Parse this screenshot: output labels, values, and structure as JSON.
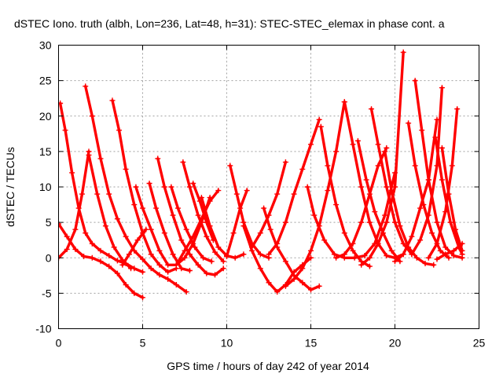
{
  "chart_data": {
    "type": "scatter",
    "title": "dSTEC Iono. truth (albh, Lon=236, Lat=48, h=31): STEC-STEC_elemax in phase cont. a",
    "xlabel": "GPS time / hours of day 242 of year 2014",
    "ylabel": "dSTEC  / TECUs",
    "xlim": [
      0,
      25
    ],
    "ylim": [
      -10,
      30
    ],
    "xticks": [
      0,
      5,
      10,
      15,
      20,
      25
    ],
    "yticks": [
      -10,
      -5,
      0,
      5,
      10,
      15,
      20,
      25,
      30
    ],
    "grid": true,
    "legend": "none",
    "marker": "+",
    "color": "#ff0000",
    "series": [
      {
        "x": [
          0.0,
          0.5,
          1.0,
          1.5,
          2.0,
          2.5,
          3.0,
          3.5,
          4.0,
          4.5,
          5.0
        ],
        "values": [
          4.8,
          3.0,
          1.2,
          0.2,
          0.0,
          -0.5,
          -1.2,
          -2.2,
          -3.8,
          -5.0,
          -5.6
        ]
      },
      {
        "x": [
          0.1,
          0.4,
          0.8,
          1.2,
          1.6,
          2.0,
          2.5,
          3.0,
          3.5,
          4.0,
          4.5,
          5.0
        ],
        "values": [
          21.8,
          18.0,
          12.0,
          7.0,
          3.5,
          2.0,
          1.0,
          0.3,
          -0.4,
          -0.8,
          -1.5,
          -2.0
        ]
      },
      {
        "x": [
          0.0,
          0.5,
          1.0,
          1.4,
          1.8
        ],
        "values": [
          0.0,
          1.2,
          4.0,
          9.0,
          15.0
        ]
      },
      {
        "x": [
          1.6,
          2.0,
          2.5,
          3.0,
          3.5,
          4.0,
          4.5,
          5.0,
          5.5,
          6.0,
          6.5,
          7.0,
          7.6
        ],
        "values": [
          24.2,
          20.0,
          14.0,
          9.0,
          5.5,
          3.0,
          1.0,
          -0.2,
          -1.5,
          -2.4,
          -3.0,
          -3.8,
          -4.8
        ]
      },
      {
        "x": [
          1.8,
          2.3,
          2.8,
          3.3,
          3.8,
          4.3
        ],
        "values": [
          14.5,
          9.0,
          4.5,
          1.5,
          -0.3,
          -1.5
        ]
      },
      {
        "x": [
          3.2,
          3.6,
          4.0,
          4.5,
          5.0,
          5.5,
          6.0,
          6.5,
          7.0
        ],
        "values": [
          22.2,
          18.0,
          12.5,
          7.5,
          3.5,
          0.5,
          -1.0,
          -2.0,
          -1.5
        ]
      },
      {
        "x": [
          3.8,
          4.2,
          4.7,
          5.2
        ],
        "values": [
          -1.0,
          0.5,
          2.5,
          4.0
        ]
      },
      {
        "x": [
          4.6,
          5.0,
          5.5,
          6.0,
          6.5,
          7.0,
          7.5,
          8.0,
          8.5,
          9.0
        ],
        "values": [
          10.0,
          7.0,
          4.0,
          1.0,
          -1.0,
          -1.0,
          0.0,
          2.0,
          5.0,
          8.5
        ]
      },
      {
        "x": [
          5.4,
          5.8,
          6.3,
          6.8,
          7.3,
          7.8
        ],
        "values": [
          10.5,
          7.0,
          3.5,
          0.5,
          -1.5,
          -1.8
        ]
      },
      {
        "x": [
          5.9,
          6.3,
          6.8,
          7.3,
          7.8,
          8.3,
          8.8,
          9.3,
          9.8
        ],
        "values": [
          14.0,
          10.0,
          6.0,
          2.5,
          0.5,
          -1.0,
          -2.2,
          -2.4,
          -1.5
        ]
      },
      {
        "x": [
          6.7,
          7.1,
          7.6,
          8.1,
          8.6,
          9.1
        ],
        "values": [
          10.0,
          7.0,
          4.0,
          1.5,
          0.0,
          -0.5
        ]
      },
      {
        "x": [
          7.4,
          7.8,
          8.3,
          8.8,
          9.3,
          9.8
        ],
        "values": [
          13.5,
          10.0,
          6.0,
          3.0,
          0.8,
          -0.5
        ]
      },
      {
        "x": [
          8.0,
          8.4,
          8.8,
          9.2
        ],
        "values": [
          10.5,
          8.0,
          5.0,
          2.5
        ]
      },
      {
        "x": [
          7.0,
          7.5,
          8.0,
          8.5,
          9.0,
          9.5
        ],
        "values": [
          -1.0,
          1.0,
          3.0,
          5.5,
          8.0,
          9.5
        ]
      },
      {
        "x": [
          8.5,
          9.0,
          9.5,
          10.0,
          10.5,
          11.0
        ],
        "values": [
          8.5,
          4.5,
          1.5,
          0.3,
          0.0,
          0.5
        ]
      },
      {
        "x": [
          10.2,
          10.6,
          11.0,
          11.5,
          12.0,
          12.5
        ],
        "values": [
          13.0,
          9.0,
          5.0,
          2.0,
          0.5,
          0.0
        ]
      },
      {
        "x": [
          10.0,
          10.4,
          10.8,
          11.2
        ],
        "values": [
          0.2,
          3.5,
          7.0,
          9.5
        ]
      },
      {
        "x": [
          11.0,
          11.5,
          12.0,
          12.5,
          13.0,
          13.5,
          14.0,
          14.5,
          15.0
        ],
        "values": [
          4.5,
          1.0,
          -1.5,
          -3.5,
          -4.8,
          -3.8,
          -2.0,
          -1.0,
          0.0
        ]
      },
      {
        "x": [
          11.5,
          12.0,
          12.5,
          13.0,
          13.5
        ],
        "values": [
          1.5,
          3.5,
          6.0,
          9.0,
          13.5
        ]
      },
      {
        "x": [
          12.2,
          12.6,
          13.0,
          13.5,
          14.0,
          14.5,
          15.0,
          15.5
        ],
        "values": [
          7.0,
          4.0,
          1.5,
          -0.5,
          -2.5,
          -3.5,
          -4.5,
          -4.0
        ]
      },
      {
        "x": [
          12.5,
          13.0,
          13.5,
          14.0,
          14.5,
          15.0,
          15.5
        ],
        "values": [
          0.5,
          2.0,
          5.0,
          9.0,
          12.5,
          16.0,
          19.5
        ]
      },
      {
        "x": [
          13.5,
          14.0,
          14.5,
          15.0,
          15.5,
          16.0,
          16.5,
          17.0
        ],
        "values": [
          -4.0,
          -3.0,
          -1.5,
          1.0,
          4.5,
          9.5,
          15.0,
          22.0
        ]
      },
      {
        "x": [
          14.8,
          15.2,
          15.8,
          16.4,
          17.0,
          17.6,
          18.2,
          18.8,
          19.4,
          20.0
        ],
        "values": [
          10.0,
          6.0,
          2.5,
          0.5,
          0.0,
          0.0,
          0.3,
          2.0,
          6.0,
          12.0
        ]
      },
      {
        "x": [
          15.6,
          16.0,
          16.5,
          17.0,
          17.5,
          18.0,
          18.5
        ],
        "values": [
          18.5,
          13.0,
          7.5,
          3.5,
          1.0,
          -0.5,
          -1.2
        ]
      },
      {
        "x": [
          17.0,
          17.5,
          18.0,
          18.5,
          19.0,
          19.5,
          20.0,
          20.5
        ],
        "values": [
          22.0,
          16.0,
          10.0,
          5.0,
          2.0,
          0.3,
          0.0,
          0.5
        ]
      },
      {
        "x": [
          17.8,
          18.3,
          18.8,
          19.3,
          19.8,
          20.3
        ],
        "values": [
          16.5,
          11.0,
          6.5,
          3.5,
          1.0,
          -0.5
        ]
      },
      {
        "x": [
          18.6,
          19.0,
          19.5,
          20.0,
          20.5,
          21.0
        ],
        "values": [
          21.0,
          16.0,
          10.0,
          5.0,
          2.0,
          0.5
        ]
      },
      {
        "x": [
          16.5,
          17.0,
          17.5,
          18.0,
          18.5,
          19.0,
          19.5
        ],
        "values": [
          0.0,
          0.5,
          2.0,
          5.0,
          9.0,
          13.0,
          15.5
        ]
      },
      {
        "x": [
          18.0,
          18.5,
          19.0,
          19.5,
          20.0,
          20.5
        ],
        "values": [
          -1.0,
          0.0,
          2.0,
          5.0,
          10.0,
          29.0
        ]
      },
      {
        "x": [
          19.4,
          19.8,
          20.3,
          20.8,
          21.3,
          21.8,
          22.3
        ],
        "values": [
          15.0,
          9.5,
          4.5,
          1.5,
          0.0,
          -0.8,
          -1.0
        ]
      },
      {
        "x": [
          20.8,
          21.2,
          21.7,
          22.2,
          22.7,
          23.2
        ],
        "values": [
          19.0,
          13.0,
          7.5,
          3.5,
          1.0,
          0.0
        ]
      },
      {
        "x": [
          21.2,
          21.6,
          22.0,
          22.5,
          23.0,
          23.5,
          24.0
        ],
        "values": [
          25.0,
          18.0,
          11.0,
          5.0,
          1.5,
          0.3,
          0.0
        ]
      },
      {
        "x": [
          20.0,
          20.5,
          21.0,
          21.5,
          22.0,
          22.5
        ],
        "values": [
          -0.5,
          0.5,
          3.0,
          7.0,
          11.0,
          19.5
        ]
      },
      {
        "x": [
          21.0,
          21.5,
          22.0,
          22.5,
          22.8
        ],
        "values": [
          0.5,
          2.5,
          6.0,
          13.0,
          24.0
        ]
      },
      {
        "x": [
          22.4,
          22.8,
          23.3,
          23.8,
          24.0
        ],
        "values": [
          17.0,
          11.0,
          5.0,
          1.5,
          0.5
        ]
      },
      {
        "x": [
          22.8,
          23.2,
          23.6,
          24.0
        ],
        "values": [
          15.5,
          9.0,
          4.0,
          1.0
        ]
      },
      {
        "x": [
          22.0,
          22.5,
          23.0,
          23.4,
          23.7
        ],
        "values": [
          0.0,
          2.0,
          6.5,
          13.0,
          21.0
        ]
      },
      {
        "x": [
          22.5,
          23.0,
          23.5,
          24.0
        ],
        "values": [
          -0.2,
          0.5,
          1.0,
          2.0
        ]
      }
    ]
  }
}
